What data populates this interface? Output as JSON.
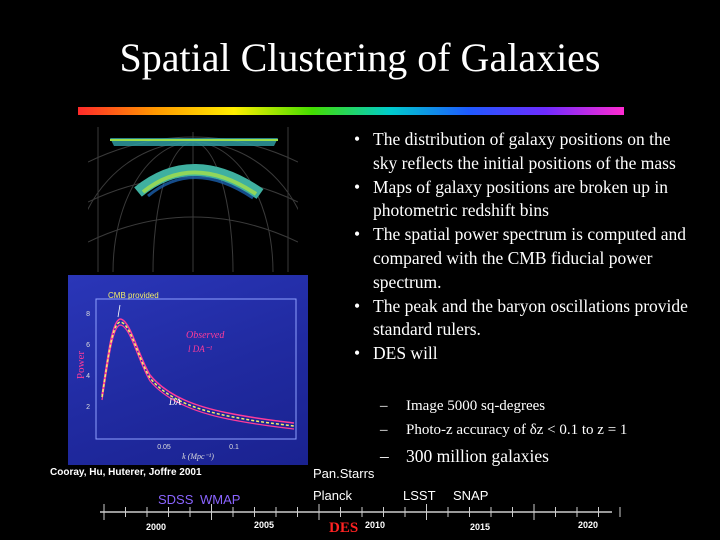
{
  "slide": {
    "title": "Spatial Clustering of Galaxies"
  },
  "bullets": [
    "The distribution of galaxy positions on the sky reflects the initial positions of the mass",
    "Maps of galaxy positions are broken up in photometric redshift bins",
    "The spatial power spectrum is computed and compared with the CMB fiducial power spectrum.",
    "The peak and the baryon oscillations provide standard rulers.",
    "DES will"
  ],
  "sub_bullets": [
    "Image 5000 sq-degrees",
    "Photo-z accuracy of δz < 0.1 to z = 1",
    "300 million galaxies"
  ],
  "figure": {
    "credit": "Cooray, Hu, Huterer, Joffre 2001",
    "plot": {
      "ylabel": "Power",
      "xlabel": "k (Mpc⁻¹)",
      "cmb_label": "CMB provided",
      "observed_label": "Observed",
      "observed_sub": "l DA⁻¹",
      "da_label": "DA",
      "x_ticks": [
        "0.05",
        "0.1"
      ],
      "y_ticks": [
        "2",
        "4",
        "6",
        "8"
      ]
    }
  },
  "timeline": {
    "years": [
      "2000",
      "2005",
      "2010",
      "2015",
      "2020"
    ],
    "surveys": {
      "sdss": "SDSS",
      "wmap": "WMAP",
      "panstarrs": "Pan.Starrs",
      "planck": "Planck",
      "des": "DES",
      "lsst": "LSST",
      "snap": "SNAP"
    },
    "colors": {
      "sdss_wmap": "#8a64ff",
      "des": "#ff2222"
    }
  }
}
